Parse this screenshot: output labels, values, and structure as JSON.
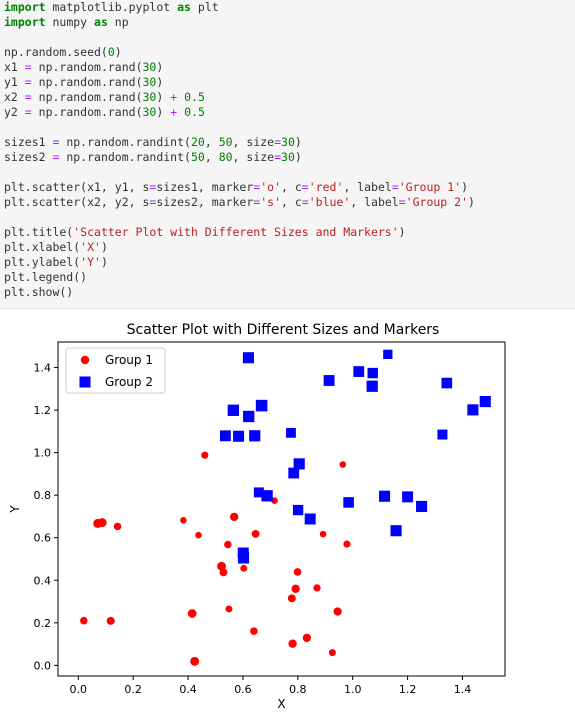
{
  "code": {
    "lines": [
      [
        {
          "t": "import",
          "c": "kw"
        },
        {
          "t": " matplotlib.pyplot "
        },
        {
          "t": "as",
          "c": "kw"
        },
        {
          "t": " plt"
        }
      ],
      [
        {
          "t": "import",
          "c": "kw"
        },
        {
          "t": " numpy "
        },
        {
          "t": "as",
          "c": "kw"
        },
        {
          "t": " np"
        }
      ],
      [],
      [
        {
          "t": "np.random.seed("
        },
        {
          "t": "0",
          "c": "num"
        },
        {
          "t": ")"
        }
      ],
      [
        {
          "t": "x1 "
        },
        {
          "t": "=",
          "c": "op"
        },
        {
          "t": " np.random.rand("
        },
        {
          "t": "30",
          "c": "num"
        },
        {
          "t": ")"
        }
      ],
      [
        {
          "t": "y1 "
        },
        {
          "t": "=",
          "c": "op"
        },
        {
          "t": " np.random.rand("
        },
        {
          "t": "30",
          "c": "num"
        },
        {
          "t": ")"
        }
      ],
      [
        {
          "t": "x2 "
        },
        {
          "t": "=",
          "c": "op"
        },
        {
          "t": " np.random.rand("
        },
        {
          "t": "30",
          "c": "num"
        },
        {
          "t": ") "
        },
        {
          "t": "+",
          "c": "op"
        },
        {
          "t": " "
        },
        {
          "t": "0.5",
          "c": "num"
        }
      ],
      [
        {
          "t": "y2 "
        },
        {
          "t": "=",
          "c": "op"
        },
        {
          "t": " np.random.rand("
        },
        {
          "t": "30",
          "c": "num"
        },
        {
          "t": ") "
        },
        {
          "t": "+",
          "c": "op"
        },
        {
          "t": " "
        },
        {
          "t": "0.5",
          "c": "num"
        }
      ],
      [],
      [
        {
          "t": "sizes1 "
        },
        {
          "t": "=",
          "c": "op"
        },
        {
          "t": " np.random.randint("
        },
        {
          "t": "20",
          "c": "num"
        },
        {
          "t": ", "
        },
        {
          "t": "50",
          "c": "num"
        },
        {
          "t": ", size"
        },
        {
          "t": "=",
          "c": "op"
        },
        {
          "t": "30",
          "c": "num"
        },
        {
          "t": ")"
        }
      ],
      [
        {
          "t": "sizes2 "
        },
        {
          "t": "=",
          "c": "op"
        },
        {
          "t": " np.random.randint("
        },
        {
          "t": "50",
          "c": "num"
        },
        {
          "t": ", "
        },
        {
          "t": "80",
          "c": "num"
        },
        {
          "t": ", size"
        },
        {
          "t": "=",
          "c": "op"
        },
        {
          "t": "30",
          "c": "num"
        },
        {
          "t": ")"
        }
      ],
      [],
      [
        {
          "t": "plt.scatter(x1, y1, s"
        },
        {
          "t": "=",
          "c": "op"
        },
        {
          "t": "sizes1, marker"
        },
        {
          "t": "=",
          "c": "op"
        },
        {
          "t": "'o'",
          "c": "str"
        },
        {
          "t": ", c"
        },
        {
          "t": "=",
          "c": "op"
        },
        {
          "t": "'red'",
          "c": "str"
        },
        {
          "t": ", label"
        },
        {
          "t": "=",
          "c": "op"
        },
        {
          "t": "'Group 1'",
          "c": "str"
        },
        {
          "t": ")"
        }
      ],
      [
        {
          "t": "plt.scatter(x2, y2, s"
        },
        {
          "t": "=",
          "c": "op"
        },
        {
          "t": "sizes2, marker"
        },
        {
          "t": "=",
          "c": "op"
        },
        {
          "t": "'s'",
          "c": "str"
        },
        {
          "t": ", c"
        },
        {
          "t": "=",
          "c": "op"
        },
        {
          "t": "'blue'",
          "c": "str"
        },
        {
          "t": ", label"
        },
        {
          "t": "=",
          "c": "op"
        },
        {
          "t": "'Group 2'",
          "c": "str"
        },
        {
          "t": ")"
        }
      ],
      [],
      [
        {
          "t": "plt.title("
        },
        {
          "t": "'Scatter Plot with Different Sizes and Markers'",
          "c": "str"
        },
        {
          "t": ")"
        }
      ],
      [
        {
          "t": "plt.xlabel("
        },
        {
          "t": "'X'",
          "c": "str"
        },
        {
          "t": ")"
        }
      ],
      [
        {
          "t": "plt.ylabel("
        },
        {
          "t": "'Y'",
          "c": "str"
        },
        {
          "t": ")"
        }
      ],
      [
        {
          "t": "plt.legend()"
        }
      ],
      [
        {
          "t": "plt.show()"
        }
      ]
    ]
  },
  "chart_data": {
    "type": "scatter",
    "title": "Scatter Plot with Different Sizes and Markers",
    "xlabel": "X",
    "ylabel": "Y",
    "xlim": [
      -0.074,
      1.555
    ],
    "ylim": [
      -0.05,
      1.52
    ],
    "xticks": [
      0.0,
      0.2,
      0.4,
      0.6,
      0.8,
      1.0,
      1.2,
      1.4
    ],
    "yticks": [
      0.0,
      0.2,
      0.4,
      0.6,
      0.8,
      1.0,
      1.2,
      1.4
    ],
    "xtick_labels": [
      "0.0",
      "0.2",
      "0.4",
      "0.6",
      "0.8",
      "1.0",
      "1.2",
      "1.4"
    ],
    "ytick_labels": [
      "0.0",
      "0.2",
      "0.4",
      "0.6",
      "0.8",
      "1.0",
      "1.2",
      "1.4"
    ],
    "grid": false,
    "legend": "upper-left",
    "series": [
      {
        "name": "Group 1",
        "marker": "circle",
        "color": "#ff0000",
        "x": [
          0.549,
          0.715,
          0.603,
          0.545,
          0.424,
          0.646,
          0.438,
          0.892,
          0.964,
          0.383,
          0.792,
          0.529,
          0.568,
          0.926,
          0.071,
          0.087,
          0.02,
          0.833,
          0.778,
          0.87,
          0.979,
          0.799,
          0.461,
          0.781,
          0.118,
          0.64,
          0.143,
          0.945,
          0.522,
          0.415
        ],
        "y": [
          0.265,
          0.774,
          0.456,
          0.568,
          0.019,
          0.618,
          0.612,
          0.617,
          0.944,
          0.682,
          0.36,
          0.437,
          0.698,
          0.06,
          0.667,
          0.671,
          0.21,
          0.129,
          0.315,
          0.364,
          0.57,
          0.439,
          0.988,
          0.102,
          0.209,
          0.161,
          0.653,
          0.253,
          0.466,
          0.244
        ],
        "sizes": [
          28,
          26,
          28,
          33,
          47,
          35,
          25,
          25,
          25,
          25,
          41,
          36,
          41,
          29,
          49,
          47,
          34,
          40,
          37,
          31,
          30,
          34,
          30,
          41,
          38,
          34,
          33,
          40,
          46,
          45
        ]
      },
      {
        "name": "Group 2",
        "marker": "square",
        "color": "#0000ff",
        "x": [
          0.658,
          1.158,
          1.251,
          1.116,
          1.438,
          0.62,
          0.914,
          1.071,
          0.668,
          0.785,
          0.801,
          1.073,
          1.343,
          0.845,
          1.128,
          0.643,
          1.327,
          0.805,
          0.985,
          1.2,
          1.483,
          1.022,
          0.584,
          0.621,
          0.565,
          0.602,
          0.688,
          0.775,
          0.601,
          0.536
        ],
        "y": [
          0.813,
          0.633,
          0.747,
          0.795,
          1.201,
          1.446,
          1.339,
          1.312,
          1.221,
          0.904,
          0.73,
          1.374,
          1.327,
          0.688,
          1.462,
          1.079,
          1.085,
          0.947,
          0.766,
          0.792,
          1.24,
          1.381,
          1.077,
          1.17,
          1.199,
          0.505,
          0.797,
          1.093,
          0.528,
          1.079
        ],
        "sizes": [
          59,
          73,
          73,
          73,
          73,
          73,
          70,
          75,
          79,
          69,
          63,
          64,
          67,
          71,
          51,
          74,
          59,
          74,
          66,
          71,
          73,
          69,
          72,
          76,
          76,
          74,
          76,
          57,
          72,
          70
        ]
      }
    ]
  }
}
